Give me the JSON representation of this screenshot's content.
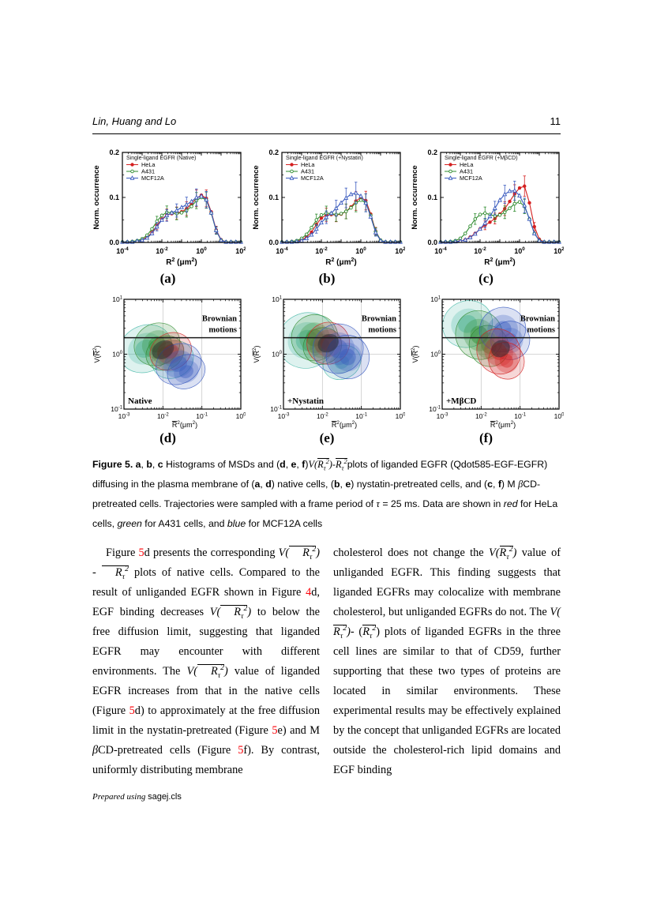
{
  "header": {
    "authors": "Lin, Huang and Lo",
    "page_number": "11"
  },
  "math": {
    "V": "V",
    "R": "R",
    "tau": "τ",
    "two": "2",
    "lp": "(",
    "rp": ")"
  },
  "palette": {
    "hela": "#d42020",
    "a431": "#2e8b2e",
    "mcf12a": "#3a5bbf",
    "cyan": "#46b8a8",
    "dark": "#23262e",
    "link": "#fb0007",
    "grid": "#c9c9c9",
    "limit_line": "#1a1a1a"
  },
  "hist_logx": [
    -4,
    -3.75,
    -3.5,
    -3.25,
    -3,
    -2.75,
    -2.5,
    -2.25,
    -2,
    -1.75,
    -1.5,
    -1.25,
    -1,
    -0.75,
    -0.5,
    -0.25,
    0,
    0.25,
    0.5,
    0.75,
    1,
    1.25,
    1.5,
    1.75,
    2
  ],
  "chart_data": [
    {
      "type": "histogram",
      "panel": "(a)",
      "row": 1,
      "legend_title": "Single-ligand EGFR (Native)",
      "ylabel": "Norm. occurrence",
      "x_sym": "R",
      "xlabel_unit": "μm",
      "xlog_range": [
        -4,
        2
      ],
      "ylim": [
        0,
        0.2
      ],
      "xticks_labeled": [
        -4,
        -2,
        0,
        2
      ],
      "yticks": [
        0,
        0.1,
        0.2
      ],
      "errbar_frac": 0.15,
      "series": [
        {
          "name": "HeLa",
          "color": "hela",
          "marker": "circle-filled",
          "y": [
            0.001,
            0.001,
            0.002,
            0.003,
            0.006,
            0.012,
            0.022,
            0.038,
            0.052,
            0.061,
            0.064,
            0.065,
            0.068,
            0.075,
            0.086,
            0.098,
            0.105,
            0.098,
            0.068,
            0.028,
            0.006,
            0.001,
            0.001,
            0.001,
            0.001
          ]
        },
        {
          "name": "A431",
          "color": "a431",
          "marker": "circle-open",
          "y": [
            0.001,
            0.001,
            0.002,
            0.004,
            0.008,
            0.016,
            0.03,
            0.047,
            0.06,
            0.067,
            0.066,
            0.064,
            0.066,
            0.071,
            0.08,
            0.093,
            0.1,
            0.094,
            0.065,
            0.026,
            0.005,
            0.001,
            0.001,
            0.001,
            0.001
          ]
        },
        {
          "name": "MCF12A",
          "color": "mcf12a",
          "marker": "triangle-open",
          "y": [
            0.001,
            0.001,
            0.001,
            0.003,
            0.005,
            0.01,
            0.02,
            0.035,
            0.05,
            0.06,
            0.066,
            0.071,
            0.078,
            0.084,
            0.091,
            0.1,
            0.103,
            0.095,
            0.066,
            0.027,
            0.005,
            0.001,
            0.001,
            0.001,
            0.001
          ]
        }
      ]
    },
    {
      "type": "histogram",
      "panel": "(b)",
      "row": 1,
      "legend_title": "Single-ligand EGFR (+Nystatin)",
      "ylabel": "Norm. occurrence",
      "x_sym": "R",
      "xlabel_unit": "μm",
      "xlog_range": [
        -4,
        2
      ],
      "ylim": [
        0,
        0.2
      ],
      "xticks_labeled": [
        -4,
        -2,
        0,
        2
      ],
      "yticks": [
        0,
        0.1,
        0.2
      ],
      "errbar_frac": 0.18,
      "series": [
        {
          "name": "HeLa",
          "color": "hela",
          "marker": "circle-filled",
          "y": [
            0.001,
            0.001,
            0.002,
            0.003,
            0.006,
            0.012,
            0.023,
            0.04,
            0.054,
            0.061,
            0.062,
            0.061,
            0.063,
            0.069,
            0.079,
            0.092,
            0.1,
            0.093,
            0.063,
            0.025,
            0.005,
            0.001,
            0.001,
            0.001,
            0.001
          ]
        },
        {
          "name": "A431",
          "color": "a431",
          "marker": "circle-open",
          "y": [
            0.001,
            0.001,
            0.002,
            0.004,
            0.009,
            0.018,
            0.033,
            0.05,
            0.061,
            0.065,
            0.064,
            0.062,
            0.064,
            0.069,
            0.077,
            0.088,
            0.094,
            0.088,
            0.06,
            0.024,
            0.005,
            0.001,
            0.001,
            0.001,
            0.001
          ]
        },
        {
          "name": "MCF12A",
          "color": "mcf12a",
          "marker": "triangle-open",
          "y": [
            0.001,
            0.001,
            0.001,
            0.002,
            0.004,
            0.009,
            0.017,
            0.03,
            0.044,
            0.056,
            0.065,
            0.076,
            0.088,
            0.099,
            0.107,
            0.11,
            0.103,
            0.088,
            0.057,
            0.022,
            0.004,
            0.001,
            0.001,
            0.001,
            0.001
          ]
        }
      ]
    },
    {
      "type": "histogram",
      "panel": "(c)",
      "row": 1,
      "legend_title": "Single-ligand EGFR (+MβCD)",
      "ylabel": "Norm. occurrence",
      "x_sym": "R",
      "xlabel_unit": "μm",
      "xlog_range": [
        -4,
        2
      ],
      "ylim": [
        0,
        0.2
      ],
      "xticks_labeled": [
        -4,
        -2,
        0,
        2
      ],
      "yticks": [
        0,
        0.1,
        0.2
      ],
      "errbar_frac": 0.15,
      "series": [
        {
          "name": "HeLa",
          "color": "hela",
          "marker": "circle-filled",
          "y": [
            0.001,
            0.001,
            0.001,
            0.002,
            0.003,
            0.006,
            0.012,
            0.02,
            0.03,
            0.038,
            0.045,
            0.053,
            0.063,
            0.075,
            0.091,
            0.108,
            0.121,
            0.125,
            0.088,
            0.035,
            0.007,
            0.001,
            0.001,
            0.001,
            0.001
          ]
        },
        {
          "name": "A431",
          "color": "a431",
          "marker": "circle-open",
          "y": [
            0.001,
            0.001,
            0.002,
            0.004,
            0.009,
            0.02,
            0.036,
            0.052,
            0.062,
            0.065,
            0.062,
            0.059,
            0.061,
            0.067,
            0.076,
            0.086,
            0.09,
            0.08,
            0.052,
            0.02,
            0.004,
            0.001,
            0.001,
            0.001,
            0.001
          ]
        },
        {
          "name": "MCF12A",
          "color": "mcf12a",
          "marker": "triangle-open",
          "y": [
            0.001,
            0.001,
            0.001,
            0.002,
            0.003,
            0.006,
            0.011,
            0.019,
            0.03,
            0.043,
            0.058,
            0.076,
            0.094,
            0.107,
            0.114,
            0.115,
            0.104,
            0.082,
            0.052,
            0.02,
            0.004,
            0.001,
            0.001,
            0.001,
            0.001
          ]
        }
      ]
    },
    {
      "type": "contour",
      "panel": "(d)",
      "row": 2,
      "corner_label": "Native",
      "annotation_lines": [
        "Brownian",
        "motions"
      ],
      "free_diffusion_limit": 2,
      "x_sym": "R",
      "xlabel_unit": "μm",
      "xlog_range": [
        -3,
        0
      ],
      "ylog_range": [
        -1,
        1
      ],
      "xticks_labeled": [
        -3,
        -2,
        -1,
        0
      ],
      "yticks_labeled": [
        -1,
        0,
        1
      ],
      "gridlines_x": [
        -2,
        -1
      ],
      "gridlines_y": [
        0
      ],
      "blobs": [
        {
          "c": "cyan",
          "cx": -2.45,
          "cy": 0.1,
          "rx": 0.7,
          "ry": 0.42,
          "a": -28
        },
        {
          "c": "cyan",
          "cx": -1.75,
          "cy": -0.1,
          "rx": 0.55,
          "ry": 0.33,
          "a": -28
        },
        {
          "c": "green",
          "cx": -2.15,
          "cy": 0.18,
          "rx": 0.6,
          "ry": 0.38,
          "a": -28
        },
        {
          "c": "green",
          "cx": -1.95,
          "cy": 0.02,
          "rx": 0.5,
          "ry": 0.3,
          "a": -28
        },
        {
          "c": "red",
          "cx": -1.8,
          "cy": 0.05,
          "rx": 0.55,
          "ry": 0.33,
          "a": -28
        },
        {
          "c": "blue",
          "cx": -1.6,
          "cy": -0.18,
          "rx": 0.6,
          "ry": 0.36,
          "a": -28
        },
        {
          "c": "blue",
          "cx": -1.4,
          "cy": -0.32,
          "rx": 0.5,
          "ry": 0.3,
          "a": -28
        },
        {
          "c": "dark",
          "cx": -2.0,
          "cy": 0.08,
          "rx": 0.3,
          "ry": 0.16,
          "a": -28
        }
      ]
    },
    {
      "type": "contour",
      "panel": "(e)",
      "row": 2,
      "corner_label": "+Nystatin",
      "annotation_lines": [
        "Brownian",
        "motions"
      ],
      "free_diffusion_limit": 2,
      "x_sym": "R",
      "xlabel_unit": "μm",
      "xlog_range": [
        -3,
        0
      ],
      "ylog_range": [
        -1,
        1
      ],
      "xticks_labeled": [
        -3,
        -2,
        -1,
        0
      ],
      "yticks_labeled": [
        -1,
        0,
        1
      ],
      "gridlines_x": [
        -2,
        -1
      ],
      "gridlines_y": [
        0
      ],
      "blobs": [
        {
          "c": "cyan",
          "cx": -2.4,
          "cy": 0.25,
          "rx": 0.75,
          "ry": 0.5,
          "a": -28
        },
        {
          "c": "cyan",
          "cx": -1.5,
          "cy": -0.15,
          "rx": 0.5,
          "ry": 0.3,
          "a": -28
        },
        {
          "c": "green",
          "cx": -2.2,
          "cy": 0.3,
          "rx": 0.6,
          "ry": 0.42,
          "a": -28
        },
        {
          "c": "green",
          "cx": -2.0,
          "cy": 0.15,
          "rx": 0.5,
          "ry": 0.33,
          "a": -28
        },
        {
          "c": "red",
          "cx": -1.85,
          "cy": 0.2,
          "rx": 0.55,
          "ry": 0.38,
          "a": -28
        },
        {
          "c": "blue",
          "cx": -1.6,
          "cy": 0.1,
          "rx": 0.65,
          "ry": 0.45,
          "a": -28
        },
        {
          "c": "blue",
          "cx": -1.35,
          "cy": -0.05,
          "rx": 0.55,
          "ry": 0.4,
          "a": -28
        },
        {
          "c": "dark",
          "cx": -1.85,
          "cy": 0.2,
          "rx": 0.28,
          "ry": 0.16,
          "a": -28
        }
      ]
    },
    {
      "type": "contour",
      "panel": "(f)",
      "row": 2,
      "corner_label": "+MβCD",
      "annotation_lines": [
        "Brownian",
        "motions"
      ],
      "free_diffusion_limit": 2,
      "x_sym": "R",
      "xlabel_unit": "μm",
      "xlog_range": [
        -3,
        0
      ],
      "ylog_range": [
        -1,
        1
      ],
      "xticks_labeled": [
        -3,
        -2,
        -1,
        0
      ],
      "yticks_labeled": [
        -1,
        0,
        1
      ],
      "gridlines_x": [
        -2,
        -1
      ],
      "gridlines_y": [
        0
      ],
      "blobs": [
        {
          "c": "cyan",
          "cx": -2.35,
          "cy": 0.55,
          "rx": 0.65,
          "ry": 0.42,
          "a": -25
        },
        {
          "c": "green",
          "cx": -2.05,
          "cy": 0.35,
          "rx": 0.6,
          "ry": 0.45,
          "a": -28
        },
        {
          "c": "green",
          "cx": -1.8,
          "cy": 0.15,
          "rx": 0.5,
          "ry": 0.38,
          "a": -28
        },
        {
          "c": "blue",
          "cx": -1.45,
          "cy": 0.45,
          "rx": 0.6,
          "ry": 0.4,
          "a": -25
        },
        {
          "c": "blue",
          "cx": -1.25,
          "cy": 0.25,
          "rx": 0.5,
          "ry": 0.35,
          "a": -25
        },
        {
          "c": "red",
          "cx": -1.55,
          "cy": 0.05,
          "rx": 0.55,
          "ry": 0.42,
          "a": -30
        },
        {
          "c": "red",
          "cx": -1.35,
          "cy": -0.12,
          "rx": 0.45,
          "ry": 0.34,
          "a": -30
        },
        {
          "c": "dark",
          "cx": -1.5,
          "cy": 0.1,
          "rx": 0.25,
          "ry": 0.15,
          "a": -30
        }
      ]
    }
  ],
  "caption": {
    "segments": [
      {
        "s": "bold",
        "t": "Figure 5."
      },
      {
        "s": "plain",
        "t": "  "
      },
      {
        "s": "bold",
        "t": "a"
      },
      {
        "s": "plain",
        "t": ", "
      },
      {
        "s": "bold",
        "t": "b"
      },
      {
        "s": "plain",
        "t": ", "
      },
      {
        "s": "bold",
        "t": "c"
      },
      {
        "s": "plain",
        "t": " Histograms of MSDs and ("
      },
      {
        "s": "bold",
        "t": "d"
      },
      {
        "s": "plain",
        "t": ", "
      },
      {
        "s": "bold",
        "t": "e"
      },
      {
        "s": "plain",
        "t": ", "
      },
      {
        "s": "bold",
        "t": "f"
      },
      {
        "s": "plain",
        "t": ")"
      },
      {
        "s": "VRt2"
      },
      {
        "s": "plain",
        "t": "-"
      },
      {
        "s": "Rt2"
      },
      {
        "s": "plain",
        "t": "plots of liganded EGFR (Qdot585-EGF-EGFR) diffusing in the plasma membrane of ("
      },
      {
        "s": "bold",
        "t": "a"
      },
      {
        "s": "plain",
        "t": ", "
      },
      {
        "s": "bold",
        "t": "d"
      },
      {
        "s": "plain",
        "t": ") native cells, ("
      },
      {
        "s": "bold",
        "t": "b"
      },
      {
        "s": "plain",
        "t": ", "
      },
      {
        "s": "bold",
        "t": "e"
      },
      {
        "s": "plain",
        "t": ") nystatin-pretreated cells, and ("
      },
      {
        "s": "bold",
        "t": "c"
      },
      {
        "s": "plain",
        "t": ", "
      },
      {
        "s": "bold",
        "t": "f"
      },
      {
        "s": "plain",
        "t": ") M "
      },
      {
        "s": "imath",
        "t": "β"
      },
      {
        "s": "plain",
        "t": "CD-pretreated cells. Trajectories were sampled with a frame period of "
      },
      {
        "s": "imath",
        "t": "τ"
      },
      {
        "s": "plain",
        "t": " = 25 ms. Data are shown in "
      },
      {
        "s": "italic",
        "t": "red"
      },
      {
        "s": "plain",
        "t": " for HeLa cells, "
      },
      {
        "s": "italic",
        "t": "green"
      },
      {
        "s": "plain",
        "t": " for A431 cells, and "
      },
      {
        "s": "italic",
        "t": "blue"
      },
      {
        "s": "plain",
        "t": " for MCF12A cells"
      }
    ]
  },
  "body": {
    "left": {
      "indent": true,
      "segments": [
        {
          "s": "plain",
          "t": "Figure "
        },
        {
          "s": "link",
          "t": "5"
        },
        {
          "s": "plain",
          "t": "d presents the corresponding "
        },
        {
          "s": "VRt2"
        },
        {
          "s": "plain",
          "t": " - "
        },
        {
          "s": "Rt2"
        },
        {
          "s": "plain",
          "t": " plots of native cells. Compared to the result of unliganded EGFR shown in Figure "
        },
        {
          "s": "link",
          "t": "4"
        },
        {
          "s": "plain",
          "t": "d, EGF binding decreases "
        },
        {
          "s": "VRt2"
        },
        {
          "s": "plain",
          "t": " to below the free diffusion limit, suggesting that liganded EGFR may encounter with different environments. The "
        },
        {
          "s": "VRt2"
        },
        {
          "s": "plain",
          "t": " value of liganded EGFR increases from that in the native cells (Figure "
        },
        {
          "s": "link",
          "t": "5"
        },
        {
          "s": "plain",
          "t": "d) to approximately at the free diffusion limit in the nystatin-pretreated (Figure "
        },
        {
          "s": "link",
          "t": "5"
        },
        {
          "s": "plain",
          "t": "e) and M "
        },
        {
          "s": "imath",
          "t": "β"
        },
        {
          "s": "plain",
          "t": "CD-pretreated cells (Figure "
        },
        {
          "s": "link",
          "t": "5"
        },
        {
          "s": "plain",
          "t": "f). By contrast, uniformly distributing membrane"
        }
      ]
    },
    "right": {
      "indent": false,
      "segments": [
        {
          "s": "plain",
          "t": "cholesterol does not change the "
        },
        {
          "s": "VRt2"
        },
        {
          "s": "plain",
          "t": " value of unliganded EGFR. This finding suggests that liganded EGFRs may colocalize with membrane cholesterol, but unliganded EGFRs do not. The "
        },
        {
          "s": "VRt2"
        },
        {
          "s": "plain",
          "t": "- ("
        },
        {
          "s": "Rt2"
        },
        {
          "s": "plain",
          "t": ") plots of liganded EGFRs in the three cell lines are similar to that of CD59, further supporting that these two types of proteins are located in similar environments. These experimental results may be effectively explained by the concept that unliganded EGFRs are located outside the cholesterol-rich lipid domains and EGF binding"
        }
      ]
    }
  },
  "footer": {
    "segments": [
      {
        "s": "italic",
        "t": "Prepared using "
      },
      {
        "s": "sans",
        "t": "sagej.cls"
      }
    ]
  }
}
